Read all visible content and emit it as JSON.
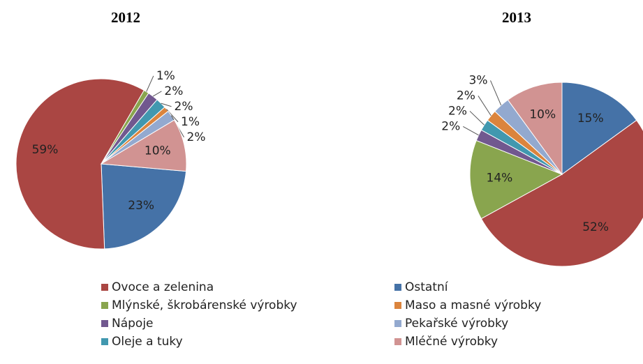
{
  "chart_data": [
    {
      "type": "pie",
      "title": "2012",
      "categories": [
        "Ostatní",
        "Ovoce a zelenina",
        "Mlýnské, škrobárenské výrobky",
        "Nápoje",
        "Oleje a tuky",
        "Maso a masné výrobky",
        "Pekařské výrobky",
        "Mléčné výrobky"
      ],
      "colors": [
        "#4572a7",
        "#aa4643",
        "#89a54e",
        "#71588f",
        "#4198af",
        "#db843d",
        "#93a9cf",
        "#d19392"
      ],
      "values": [
        23,
        59,
        1,
        2,
        2,
        1,
        2,
        10
      ]
    },
    {
      "type": "pie",
      "title": "2013",
      "categories": [
        "Ostatní",
        "Ovoce a zelenina",
        "Mlýnské, škrobárenské výrobky",
        "Nápoje",
        "Oleje a tuky",
        "Maso a masné výrobky",
        "Pekařské výrobky",
        "Mléčné výrobky"
      ],
      "colors": [
        "#4572a7",
        "#aa4643",
        "#89a54e",
        "#71588f",
        "#4198af",
        "#db843d",
        "#93a9cf",
        "#d19392"
      ],
      "values": [
        15,
        52,
        14,
        2,
        2,
        2,
        3,
        10
      ]
    }
  ]
}
